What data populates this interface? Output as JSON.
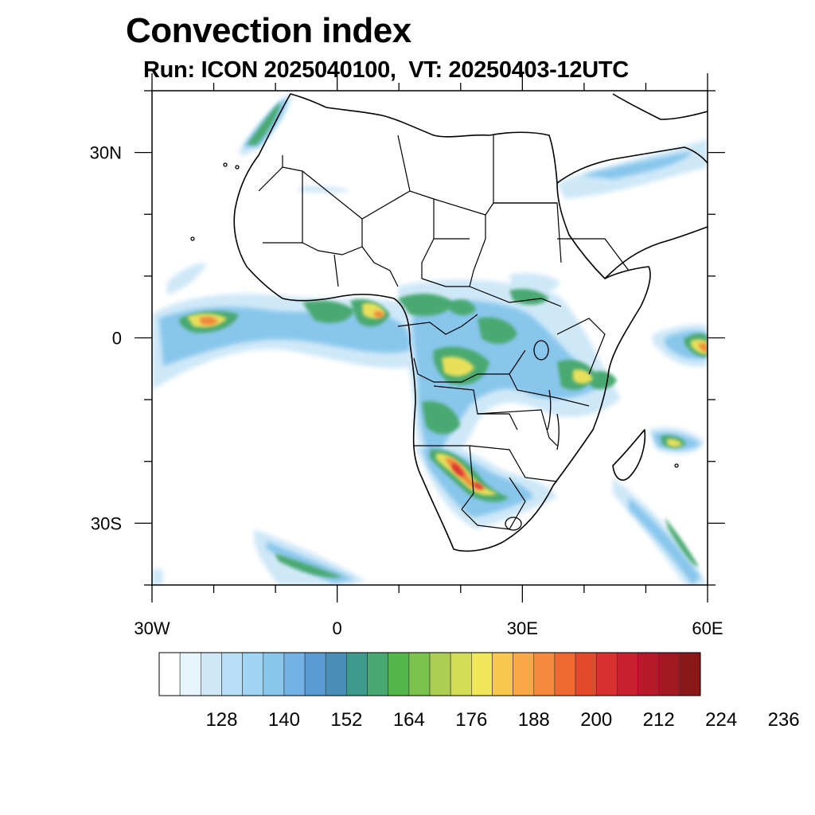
{
  "title": "Convection index",
  "subtitle": "Run: ICON 2025040100,  VT: 20250403-12UTC",
  "map": {
    "lon_range": [
      -30,
      60
    ],
    "lat_range": [
      -40,
      40
    ],
    "lat_ticks": [
      {
        "value": 30,
        "label": "30N"
      },
      {
        "value": 0,
        "label": "0"
      },
      {
        "value": -30,
        "label": "30S"
      }
    ],
    "lon_ticks": [
      {
        "value": -30,
        "label": "30W"
      },
      {
        "value": 0,
        "label": "0"
      },
      {
        "value": 30,
        "label": "30E"
      },
      {
        "value": 60,
        "label": "60E"
      }
    ]
  },
  "colorbar": {
    "colors": [
      "#ffffff",
      "#e8f4fc",
      "#cfe8f8",
      "#b8def5",
      "#9fd4f3",
      "#88c6ec",
      "#72b2e4",
      "#5a9bd6",
      "#4a8fb8",
      "#3f9a8e",
      "#4aa971",
      "#52b84a",
      "#7cc24e",
      "#aacf52",
      "#d3dd56",
      "#f0e65a",
      "#f7c84e",
      "#f8a847",
      "#f58a3c",
      "#ee6a32",
      "#e34a2c",
      "#d93030",
      "#c8202e",
      "#b51a28",
      "#a01820",
      "#8b1818"
    ],
    "labels": [
      "128",
      "140",
      "152",
      "164",
      "176",
      "188",
      "200",
      "212",
      "224",
      "236"
    ]
  }
}
